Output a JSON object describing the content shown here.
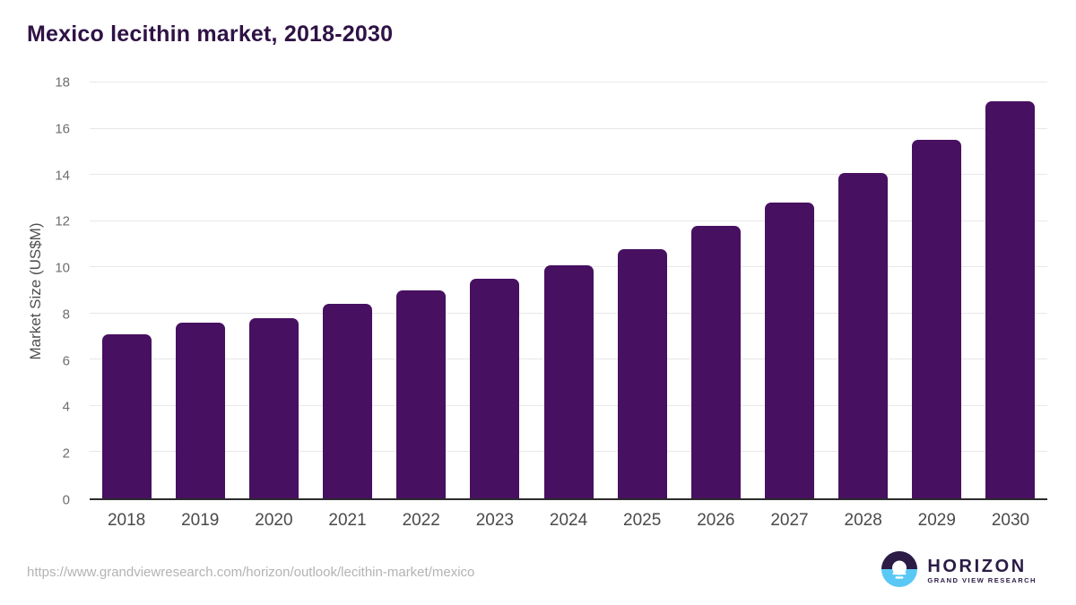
{
  "chart_data": {
    "type": "bar",
    "title": "Mexico lecithin market, 2018-2030",
    "categories": [
      "2018",
      "2019",
      "2020",
      "2021",
      "2022",
      "2023",
      "2024",
      "2025",
      "2026",
      "2027",
      "2028",
      "2029",
      "2030"
    ],
    "values": [
      7.1,
      7.6,
      7.8,
      8.4,
      9.0,
      9.5,
      10.1,
      10.8,
      11.8,
      12.8,
      14.1,
      15.5,
      17.2
    ],
    "xlabel": "",
    "ylabel": "Market Size (US$M)",
    "ylim": [
      0,
      18
    ],
    "ytick_step": 2,
    "grid": true,
    "legend_position": "none",
    "bar_color": "#471060"
  },
  "footer": {
    "source_url": "https://www.grandviewresearch.com/horizon/outlook/lecithin-market/mexico",
    "logo_brand": "HORIZON",
    "logo_subbrand": "GRAND VIEW RESEARCH"
  },
  "colors": {
    "bar": "#471060",
    "title_text": "#2f1245",
    "grid_line": "#e8e8e8",
    "axis_line": "#2b2b2b",
    "ytick_text": "#6e6e6e",
    "xtick_text": "#4a4a4a",
    "url_text": "#b3b3b3",
    "logo_dark": "#2b1b45",
    "logo_blue": "#5ac8f5"
  }
}
